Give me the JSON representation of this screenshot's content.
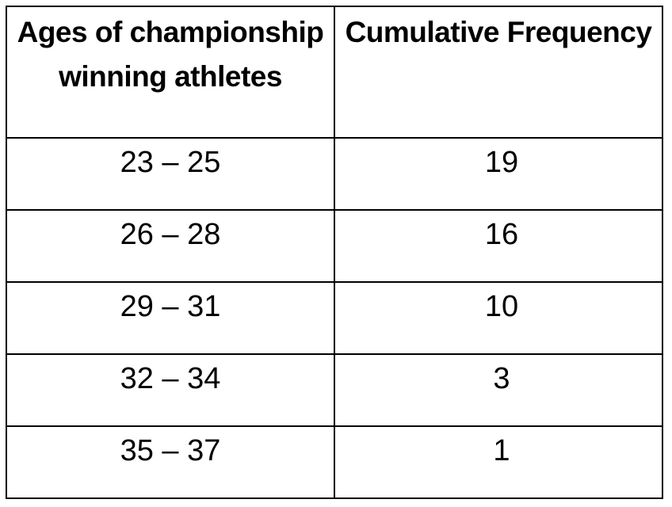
{
  "table": {
    "headers": {
      "age": "Ages of championship winning athletes",
      "cumulative_frequency": "Cumulative Frequency"
    },
    "rows": [
      {
        "age_range": "23 – 25",
        "cumulative_frequency": "19"
      },
      {
        "age_range": "26 – 28",
        "cumulative_frequency": "16"
      },
      {
        "age_range": "29 – 31",
        "cumulative_frequency": "10"
      },
      {
        "age_range": "32 – 34",
        "cumulative_frequency": "3"
      },
      {
        "age_range": "35 – 37",
        "cumulative_frequency": "1"
      }
    ]
  }
}
